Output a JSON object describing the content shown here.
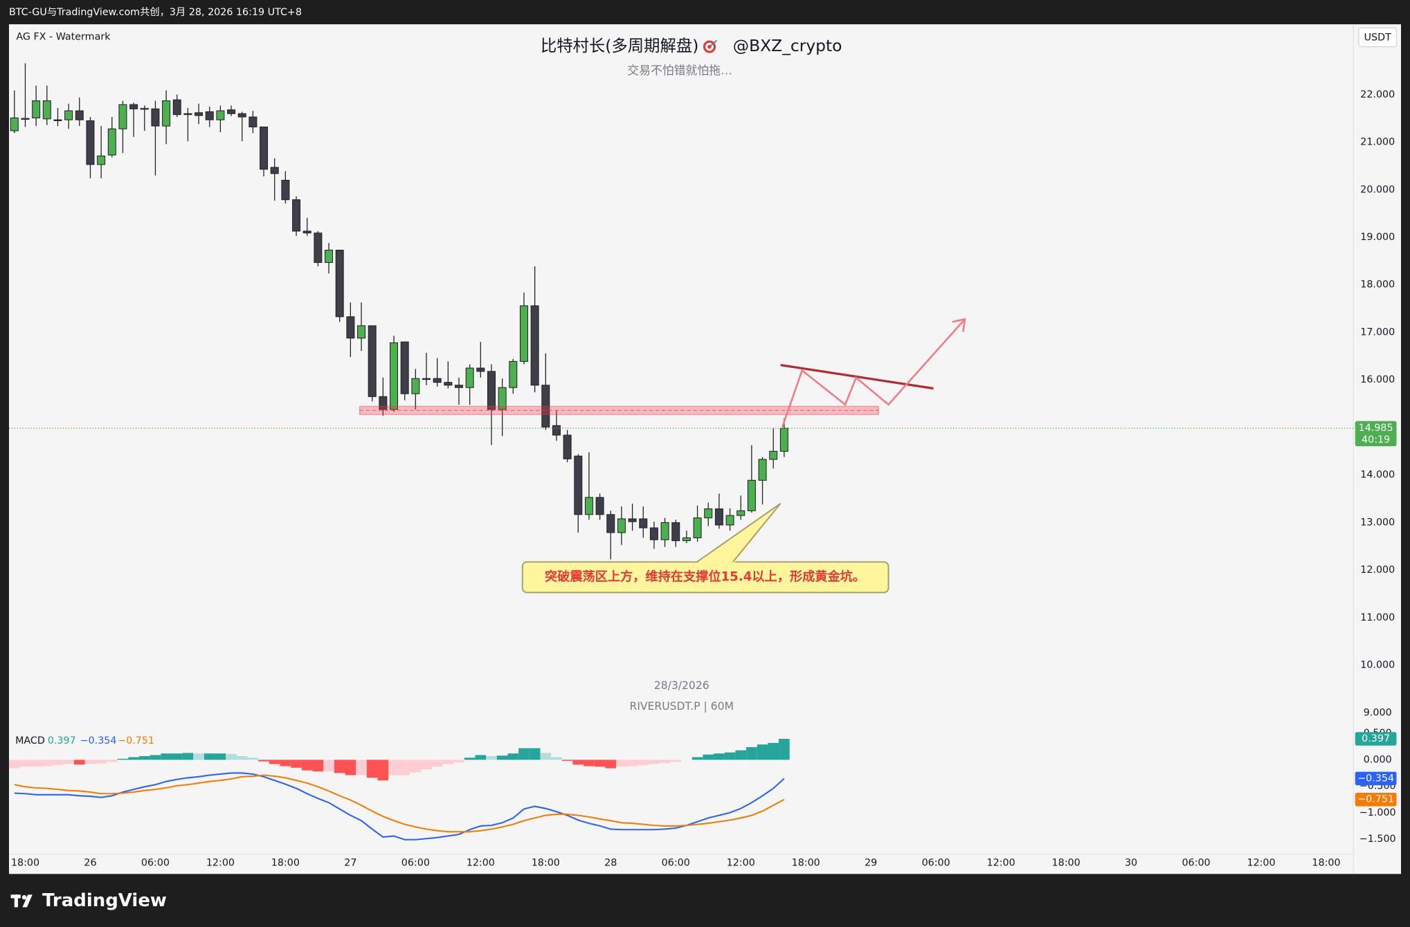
{
  "header": {
    "attribution": "BTC-GU与TradingView.com共创，3月 28, 2026 16:19 UTC+8",
    "watermark": "AG FX - Watermark",
    "title": "比特村长(多周期解盘)",
    "handle": "@BXZ_crypto",
    "subtitle": "交易不怕错就怕拖…",
    "currency": "USDT",
    "date": "28/3/2026",
    "symbol": "RIVERUSDT.P | 60M"
  },
  "footer": {
    "logo": "TradingView"
  },
  "chart_data": [
    {
      "type": "candlestick",
      "annotation": "突破震荡区上方，维持在支撑位15.4以上，形成黄金坑。",
      "up_color": "#4caf50",
      "down_color": "#3f3f4c",
      "wick_color": "#222222",
      "last_label": "14.985",
      "countdown": "40:19",
      "ylim": [
        8.77,
        23.46
      ],
      "yticks": [
        {
          "value": 22,
          "label": "22.000"
        },
        {
          "value": 21,
          "label": "21.000"
        },
        {
          "value": 20,
          "label": "20.000"
        },
        {
          "value": 19,
          "label": "19.000"
        },
        {
          "value": 18,
          "label": "18.000"
        },
        {
          "value": 17,
          "label": "17.000"
        },
        {
          "value": 16,
          "label": "16.000"
        },
        {
          "value": 15,
          "label": "15.000"
        },
        {
          "value": 14,
          "label": "14.000"
        },
        {
          "value": 13,
          "label": "13.000"
        },
        {
          "value": 12,
          "label": "12.000"
        },
        {
          "value": 11,
          "label": "11.000"
        },
        {
          "value": 10,
          "label": "10.000"
        },
        {
          "value": 9,
          "label": "9.000"
        }
      ],
      "categories": [
        null,
        "18:00",
        null,
        null,
        null,
        null,
        null,
        "26",
        null,
        null,
        null,
        null,
        null,
        "06:00",
        null,
        null,
        null,
        null,
        null,
        "12:00",
        null,
        null,
        null,
        null,
        null,
        "18:00",
        null,
        null,
        null,
        null,
        null,
        "27",
        null,
        null,
        null,
        null,
        null,
        "06:00",
        null,
        null,
        null,
        null,
        null,
        "12:00",
        null,
        null,
        null,
        null,
        null,
        "18:00",
        null,
        null,
        null,
        null,
        null,
        "28",
        null,
        null,
        null,
        null,
        null,
        "06:00",
        null,
        null,
        null,
        null,
        null,
        "12:00",
        null,
        null,
        null,
        null,
        null,
        "18:00",
        null,
        null,
        null,
        null,
        null,
        "29",
        null,
        null,
        null,
        null,
        null,
        "06:00",
        null,
        null,
        null,
        null,
        null,
        "12:00",
        null,
        null,
        null,
        null,
        null,
        "18:00",
        null,
        null,
        null,
        null,
        null,
        "30",
        null,
        null,
        null,
        null,
        null,
        "06:00",
        null,
        null,
        null,
        null,
        null,
        "12:00",
        null,
        null,
        null,
        null,
        null,
        "18:00",
        null,
        null
      ],
      "open": [
        21.24,
        21.48,
        21.51,
        21.49,
        21.47,
        21.47,
        21.66,
        21.45,
        20.53,
        20.73,
        21.28,
        21.79,
        21.7,
        21.7,
        21.34,
        21.89,
        21.6,
        21.62,
        21.64,
        21.47,
        21.68,
        21.6,
        21.53,
        21.32,
        20.47,
        20.2,
        19.79,
        19.13,
        19.09,
        18.47,
        18.73,
        17.33,
        16.88,
        17.14,
        15.65,
        15.38,
        16.8,
        15.71,
        16.03,
        16.03,
        15.95,
        15.89,
        15.84,
        16.25,
        16.18,
        15.38,
        15.84,
        16.39,
        17.56,
        15.89,
        15.04,
        14.84,
        14.4,
        13.17,
        13.53,
        13.17,
        12.79,
        13.08,
        13.08,
        12.89,
        12.64,
        13.0,
        12.62,
        12.68,
        13.1,
        13.29,
        12.95,
        13.15,
        13.25,
        13.89,
        14.33,
        14.5,
        null,
        null,
        null,
        null,
        null,
        null,
        null,
        null,
        null,
        null,
        null,
        null,
        null,
        null,
        null,
        null,
        null,
        null,
        null,
        null,
        null,
        null,
        null,
        null,
        null,
        null,
        null,
        null,
        null,
        null,
        null,
        null,
        null,
        null,
        null,
        null,
        null,
        null,
        null,
        null,
        null,
        null,
        null,
        null,
        null,
        null,
        null,
        null,
        null,
        null,
        null,
        null
      ],
      "high": [
        22.09,
        22.66,
        22.19,
        22.19,
        21.72,
        21.81,
        21.94,
        21.53,
        21.34,
        21.53,
        21.87,
        21.83,
        21.77,
        21.87,
        22.09,
        22.0,
        21.72,
        21.81,
        21.75,
        21.77,
        21.77,
        21.64,
        21.66,
        21.32,
        20.66,
        20.39,
        19.86,
        19.41,
        19.13,
        18.88,
        18.73,
        17.63,
        17.63,
        17.14,
        16.05,
        16.93,
        16.8,
        16.23,
        16.57,
        16.46,
        16.39,
        16.05,
        16.33,
        16.8,
        16.33,
        16.03,
        16.44,
        17.84,
        18.39,
        16.56,
        15.36,
        14.95,
        14.44,
        14.48,
        13.61,
        13.25,
        13.34,
        13.4,
        13.34,
        13.02,
        13.1,
        13.06,
        12.83,
        13.36,
        13.42,
        13.61,
        13.3,
        13.57,
        14.63,
        14.38,
        14.99,
        15.19,
        null,
        null,
        null,
        null,
        null,
        null,
        null,
        null,
        null,
        null,
        null,
        null,
        null,
        null,
        null,
        null,
        null,
        null,
        null,
        null,
        null,
        null,
        null,
        null,
        null,
        null,
        null,
        null,
        null,
        null,
        null,
        null,
        null,
        null,
        null,
        null,
        null,
        null,
        null,
        null,
        null,
        null,
        null,
        null,
        null,
        null,
        null,
        null,
        null,
        null,
        null,
        null
      ],
      "low": [
        21.19,
        21.32,
        21.34,
        21.36,
        21.34,
        21.28,
        21.34,
        20.24,
        20.24,
        20.68,
        20.77,
        21.11,
        21.24,
        20.3,
        20.96,
        21.53,
        21.02,
        21.38,
        21.32,
        21.21,
        21.55,
        21.02,
        21.19,
        20.28,
        19.77,
        19.71,
        19.03,
        19.03,
        18.39,
        18.24,
        17.22,
        16.48,
        16.61,
        15.55,
        15.25,
        15.33,
        15.57,
        15.38,
        15.89,
        15.86,
        15.82,
        15.48,
        15.48,
        16.05,
        14.63,
        14.82,
        15.71,
        16.33,
        15.74,
        14.95,
        14.72,
        14.27,
        12.79,
        13.06,
        13.06,
        12.23,
        12.53,
        12.83,
        12.68,
        12.45,
        12.49,
        12.49,
        12.57,
        12.6,
        12.93,
        12.87,
        12.83,
        13.06,
        13.21,
        13.38,
        14.14,
        14.38,
        null,
        null,
        null,
        null,
        null,
        null,
        null,
        null,
        null,
        null,
        null,
        null,
        null,
        null,
        null,
        null,
        null,
        null,
        null,
        null,
        null,
        null,
        null,
        null,
        null,
        null,
        null,
        null,
        null,
        null,
        null,
        null,
        null,
        null,
        null,
        null,
        null,
        null,
        null,
        null,
        null,
        null,
        null,
        null,
        null,
        null,
        null,
        null,
        null,
        null,
        null,
        null
      ],
      "close": [
        21.51,
        21.5,
        21.87,
        21.87,
        21.46,
        21.66,
        21.47,
        20.53,
        20.71,
        21.28,
        21.79,
        21.7,
        21.71,
        21.34,
        21.87,
        21.58,
        21.58,
        21.56,
        21.47,
        21.66,
        21.6,
        21.53,
        21.32,
        20.43,
        20.34,
        19.79,
        19.13,
        19.09,
        18.47,
        18.73,
        17.33,
        16.88,
        17.14,
        15.65,
        15.38,
        16.78,
        15.71,
        16.03,
        16.01,
        15.95,
        15.89,
        15.84,
        16.25,
        16.18,
        15.38,
        15.84,
        16.39,
        17.56,
        15.89,
        15.01,
        14.84,
        14.34,
        13.17,
        13.53,
        13.17,
        12.79,
        13.08,
        13.02,
        12.89,
        12.64,
        13.0,
        12.62,
        12.68,
        13.1,
        13.29,
        12.95,
        13.15,
        13.25,
        13.89,
        14.33,
        14.5,
        14.985,
        null,
        null,
        null,
        null,
        null,
        null,
        null,
        null,
        null,
        null,
        null,
        null,
        null,
        null,
        null,
        null,
        null,
        null,
        null,
        null,
        null,
        null,
        null,
        null,
        null,
        null,
        null,
        null,
        null,
        null,
        null,
        null,
        null,
        null,
        null,
        null,
        null,
        null,
        null,
        null,
        null,
        null,
        null,
        null,
        null,
        null,
        null,
        null,
        null,
        null,
        null,
        null
      ]
    },
    {
      "type": "macd",
      "title": "MACD",
      "ylim": [
        -1.75,
        0.63
      ],
      "yticks": [
        {
          "value": 0.5,
          "label": "0.500"
        },
        {
          "value": 0,
          "label": "0.000"
        },
        {
          "value": -0.5,
          "label": "−0.500"
        },
        {
          "value": -1,
          "label": "−1.000"
        },
        {
          "value": -1.5,
          "label": "−1.500"
        }
      ],
      "histogram": {
        "last_label": "0.397",
        "colors": {
          "grow_above": "#26a69a",
          "fall_above": "#b2dfdb",
          "grow_below": "#ffcdd2",
          "fall_below": "#ff5252"
        },
        "values": [
          -0.16,
          -0.13,
          -0.13,
          -0.12,
          -0.1,
          -0.08,
          -0.09,
          -0.08,
          -0.07,
          -0.04,
          0.02,
          0.05,
          0.07,
          0.09,
          0.12,
          0.12,
          0.13,
          0.12,
          0.12,
          0.12,
          0.11,
          0.07,
          0.04,
          -0.03,
          -0.08,
          -0.12,
          -0.15,
          -0.2,
          -0.22,
          -0.22,
          -0.25,
          -0.29,
          -0.29,
          -0.34,
          -0.39,
          -0.29,
          -0.29,
          -0.24,
          -0.18,
          -0.13,
          -0.08,
          -0.05,
          0.04,
          0.09,
          0.07,
          0.08,
          0.12,
          0.22,
          0.22,
          0.13,
          0.05,
          -0.02,
          -0.09,
          -0.12,
          -0.13,
          -0.16,
          -0.13,
          -0.12,
          -0.1,
          -0.08,
          -0.06,
          -0.04,
          0,
          0.05,
          0.1,
          0.12,
          0.14,
          0.18,
          0.24,
          0.29,
          0.32,
          0.397,
          null,
          null,
          null,
          null,
          null,
          null,
          null,
          null,
          null,
          null,
          null,
          null,
          null,
          null,
          null,
          null,
          null,
          null,
          null,
          null,
          null,
          null,
          null,
          null,
          null,
          null,
          null,
          null,
          null,
          null,
          null,
          null,
          null,
          null,
          null,
          null,
          null,
          null,
          null,
          null,
          null,
          null,
          null,
          null,
          null,
          null,
          null,
          null,
          null,
          null,
          null,
          null
        ]
      },
      "macd_line": {
        "color": "#2962ff",
        "last_label": "−0.354",
        "values": [
          -0.63,
          -0.64,
          -0.66,
          -0.66,
          -0.66,
          -0.66,
          -0.68,
          -0.69,
          -0.71,
          -0.68,
          -0.61,
          -0.56,
          -0.51,
          -0.47,
          -0.41,
          -0.37,
          -0.34,
          -0.32,
          -0.29,
          -0.27,
          -0.25,
          -0.25,
          -0.27,
          -0.32,
          -0.39,
          -0.46,
          -0.54,
          -0.64,
          -0.73,
          -0.81,
          -0.93,
          -1.05,
          -1.15,
          -1.31,
          -1.46,
          -1.44,
          -1.51,
          -1.51,
          -1.49,
          -1.47,
          -1.44,
          -1.41,
          -1.32,
          -1.25,
          -1.24,
          -1.19,
          -1.1,
          -0.93,
          -0.88,
          -0.92,
          -0.98,
          -1.05,
          -1.14,
          -1.2,
          -1.25,
          -1.31,
          -1.32,
          -1.32,
          -1.32,
          -1.32,
          -1.31,
          -1.29,
          -1.24,
          -1.17,
          -1.1,
          -1.05,
          -1.0,
          -0.92,
          -0.81,
          -0.68,
          -0.54,
          -0.354,
          null,
          null,
          null,
          null,
          null,
          null,
          null,
          null,
          null,
          null,
          null,
          null,
          null,
          null,
          null,
          null,
          null,
          null,
          null,
          null,
          null,
          null,
          null,
          null,
          null,
          null,
          null,
          null,
          null,
          null,
          null,
          null,
          null,
          null,
          null,
          null,
          null,
          null,
          null,
          null,
          null,
          null,
          null,
          null,
          null,
          null,
          null,
          null,
          null,
          null,
          null,
          null
        ]
      },
      "signal_line": {
        "color": "#f57c00",
        "last_label": "−0.751",
        "values": [
          -0.47,
          -0.51,
          -0.53,
          -0.54,
          -0.56,
          -0.58,
          -0.59,
          -0.61,
          -0.64,
          -0.64,
          -0.63,
          -0.61,
          -0.58,
          -0.56,
          -0.53,
          -0.49,
          -0.47,
          -0.44,
          -0.41,
          -0.39,
          -0.36,
          -0.32,
          -0.31,
          -0.29,
          -0.31,
          -0.34,
          -0.39,
          -0.44,
          -0.51,
          -0.59,
          -0.68,
          -0.76,
          -0.86,
          -0.97,
          -1.07,
          -1.15,
          -1.22,
          -1.27,
          -1.31,
          -1.34,
          -1.36,
          -1.36,
          -1.36,
          -1.34,
          -1.31,
          -1.27,
          -1.22,
          -1.15,
          -1.1,
          -1.05,
          -1.03,
          -1.03,
          -1.05,
          -1.08,
          -1.12,
          -1.15,
          -1.19,
          -1.2,
          -1.22,
          -1.24,
          -1.25,
          -1.25,
          -1.24,
          -1.22,
          -1.2,
          -1.17,
          -1.14,
          -1.1,
          -1.05,
          -0.97,
          -0.86,
          -0.751,
          null,
          null,
          null,
          null,
          null,
          null,
          null,
          null,
          null,
          null,
          null,
          null,
          null,
          null,
          null,
          null,
          null,
          null,
          null,
          null,
          null,
          null,
          null,
          null,
          null,
          null,
          null,
          null,
          null,
          null,
          null,
          null,
          null,
          null,
          null,
          null,
          null,
          null,
          null,
          null,
          null,
          null,
          null,
          null,
          null,
          null,
          null,
          null,
          null,
          null,
          null,
          null
        ]
      }
    }
  ]
}
